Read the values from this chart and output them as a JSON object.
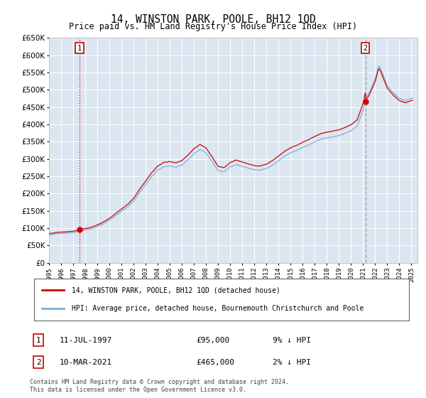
{
  "title": "14, WINSTON PARK, POOLE, BH12 1QD",
  "subtitle": "Price paid vs. HM Land Registry's House Price Index (HPI)",
  "ylim": [
    0,
    650000
  ],
  "yticks": [
    0,
    50000,
    100000,
    150000,
    200000,
    250000,
    300000,
    350000,
    400000,
    450000,
    500000,
    550000,
    600000,
    650000
  ],
  "xlim_start": 1995.0,
  "xlim_end": 2025.5,
  "plot_bg_color": "#dce6f1",
  "grid_color": "#ffffff",
  "legend_entry1": "14, WINSTON PARK, POOLE, BH12 1QD (detached house)",
  "legend_entry2": "HPI: Average price, detached house, Bournemouth Christchurch and Poole",
  "footnote": "Contains HM Land Registry data © Crown copyright and database right 2024.\nThis data is licensed under the Open Government Licence v3.0.",
  "point1_label": "1",
  "point1_date": "11-JUL-1997",
  "point1_price": "£95,000",
  "point1_hpi_text": "9% ↓ HPI",
  "point1_x": 1997.53,
  "point1_y": 95000,
  "point2_label": "2",
  "point2_date": "10-MAR-2021",
  "point2_price": "£465,000",
  "point2_hpi_text": "2% ↓ HPI",
  "point2_x": 2021.19,
  "point2_y": 465000,
  "red_line_color": "#cc0000",
  "blue_line_color": "#7aaed6",
  "table_rows": [
    [
      "1",
      "11-JUL-1997",
      "£95,000",
      "9% ↓ HPI"
    ],
    [
      "2",
      "10-MAR-2021",
      "£465,000",
      "2% ↓ HPI"
    ]
  ]
}
